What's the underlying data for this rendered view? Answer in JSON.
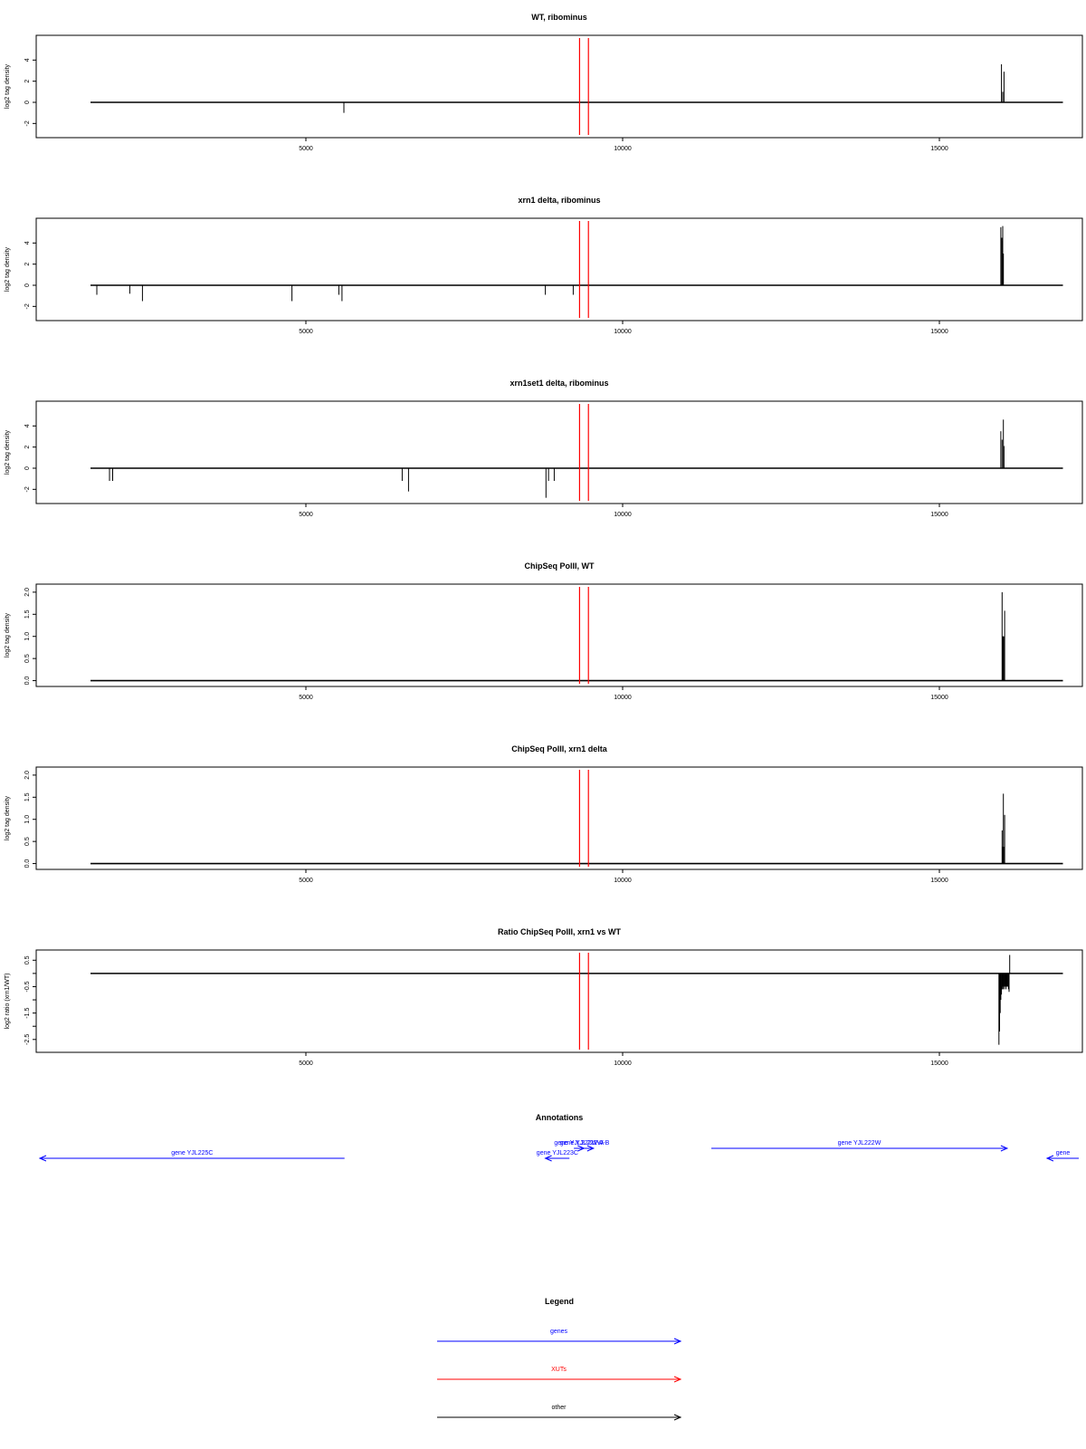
{
  "colors": {
    "genes": "#0000ff",
    "xuts": "#ff0000",
    "other": "#000000",
    "axis": "#000000"
  },
  "chart_data": [
    {
      "type": "line",
      "title": "WT, ribominus",
      "ylabel": "log2 tag density",
      "xlim": [
        800,
        17200
      ],
      "ylim": [
        -3,
        6
      ],
      "xticks": [
        5000,
        10000,
        15000
      ],
      "yticks": [
        -2,
        0,
        2,
        4
      ],
      "ytick_labels": [
        "-2",
        "0",
        "2",
        "4"
      ],
      "baseline": 0,
      "spikes": [
        [
          5600,
          -1.0
        ],
        [
          15980,
          3.6
        ],
        [
          16020,
          2.9
        ],
        [
          16000,
          1.0
        ]
      ],
      "red_markers": [
        9320,
        9460
      ]
    },
    {
      "type": "line",
      "title": "xrn1 delta, ribominus",
      "ylabel": "log2 tag density",
      "xlim": [
        800,
        17200
      ],
      "ylim": [
        -3,
        6
      ],
      "xticks": [
        5000,
        10000,
        15000
      ],
      "yticks": [
        -2,
        0,
        2,
        4
      ],
      "ytick_labels": [
        "-2",
        "0",
        "2",
        "4"
      ],
      "baseline": 0,
      "spikes": [
        [
          1700,
          -0.9
        ],
        [
          2220,
          -0.8
        ],
        [
          2420,
          -1.5
        ],
        [
          4780,
          -1.5
        ],
        [
          5520,
          -0.9
        ],
        [
          5570,
          -1.5
        ],
        [
          8780,
          -0.9
        ],
        [
          9220,
          -0.9
        ],
        [
          15970,
          5.5
        ],
        [
          16000,
          5.6
        ],
        [
          15985,
          4.5
        ],
        [
          16010,
          3.0
        ],
        [
          15995,
          4.2
        ]
      ],
      "red_markers": [
        9320,
        9460
      ]
    },
    {
      "type": "line",
      "title": "xrn1set1 delta, ribominus",
      "ylabel": "log2 tag density",
      "xlim": [
        800,
        17200
      ],
      "ylim": [
        -3,
        6
      ],
      "xticks": [
        5000,
        10000,
        15000
      ],
      "yticks": [
        -2,
        0,
        2,
        4
      ],
      "ytick_labels": [
        "-2",
        "0",
        "2",
        "4"
      ],
      "baseline": 0,
      "spikes": [
        [
          1900,
          -1.2
        ],
        [
          1950,
          -1.2
        ],
        [
          6520,
          -1.2
        ],
        [
          6620,
          -2.2
        ],
        [
          8790,
          -2.8
        ],
        [
          8830,
          -1.2
        ],
        [
          8920,
          -1.2
        ],
        [
          15970,
          3.5
        ],
        [
          16010,
          4.6
        ],
        [
          15990,
          2.7
        ],
        [
          16020,
          2.1
        ]
      ],
      "red_markers": [
        9320,
        9460
      ]
    },
    {
      "type": "line",
      "title": "ChipSeq PolII, WT",
      "ylabel": "log2 tag density",
      "xlim": [
        800,
        17200
      ],
      "ylim": [
        -0.05,
        2.1
      ],
      "xticks": [
        5000,
        10000,
        15000
      ],
      "yticks": [
        0,
        0.5,
        1,
        1.5,
        2
      ],
      "ytick_labels": [
        "0.0",
        "0.5",
        "1.0",
        "1.5",
        "2.0"
      ],
      "baseline": 0,
      "spikes": [
        [
          15990,
          2.0
        ],
        [
          16030,
          1.58
        ],
        [
          16000,
          1.0
        ],
        [
          16010,
          1.0
        ],
        [
          16015,
          1.0
        ]
      ],
      "red_markers": [
        9320,
        9460
      ]
    },
    {
      "type": "line",
      "title": "ChipSeq PolII, xrn1 delta",
      "ylabel": "log2 tag density",
      "xlim": [
        800,
        17200
      ],
      "ylim": [
        -0.05,
        2.1
      ],
      "xticks": [
        5000,
        10000,
        15000
      ],
      "yticks": [
        0,
        0.5,
        1,
        1.5,
        2
      ],
      "ytick_labels": [
        "0.0",
        "0.5",
        "1.0",
        "1.5",
        "2.0"
      ],
      "baseline": 0,
      "spikes": [
        [
          15990,
          0.75
        ],
        [
          16010,
          1.58
        ],
        [
          16030,
          1.1
        ],
        [
          16000,
          0.38
        ],
        [
          16015,
          0.38
        ]
      ],
      "red_markers": [
        9320,
        9460
      ]
    },
    {
      "type": "line",
      "title": "Ratio ChipSeq PolII, xrn1 vs WT",
      "ylabel": "log2 ratio (xrn1/WT)",
      "xlim": [
        800,
        17200
      ],
      "ylim": [
        -2.85,
        0.75
      ],
      "xticks": [
        5000,
        10000,
        15000
      ],
      "yticks": [
        -2.5,
        -2,
        -1.5,
        -1,
        -0.5,
        0,
        0.5
      ],
      "ytick_labels": [
        "-2.5",
        "-1.5",
        "-0.5",
        "0.5"
      ],
      "ytick_label_values": [
        -2.5,
        -1.5,
        -0.5,
        0.5
      ],
      "baseline": 0,
      "spikes": [
        [
          15940,
          -2.7
        ],
        [
          15950,
          -2.2
        ],
        [
          15960,
          -1.5
        ],
        [
          15970,
          -1.0
        ],
        [
          15980,
          -0.8
        ],
        [
          15990,
          -0.6
        ],
        [
          16000,
          -0.6
        ],
        [
          16010,
          -0.5
        ],
        [
          16020,
          -0.6
        ],
        [
          16030,
          -0.5
        ],
        [
          16040,
          -0.5
        ],
        [
          16050,
          -0.6
        ],
        [
          16060,
          -0.5
        ],
        [
          16070,
          -0.5
        ],
        [
          16080,
          -0.5
        ],
        [
          16090,
          -0.6
        ],
        [
          16100,
          -0.7
        ],
        [
          16110,
          0.7
        ]
      ],
      "red_markers": [
        9320,
        9460
      ]
    }
  ],
  "annotations": {
    "title": "Annotations",
    "features": [
      {
        "label": "gene YJL225C",
        "start": 800,
        "end": 5610,
        "strand": "-",
        "row": 2,
        "type": "genes"
      },
      {
        "label": "gene YJL223C",
        "start": 8780,
        "end": 9160,
        "strand": "-",
        "row": 2,
        "type": "genes"
      },
      {
        "label": "gene YJL222W-A",
        "start": 9230,
        "end": 9390,
        "strand": "+",
        "row": 1,
        "type": "genes"
      },
      {
        "label": "gene YJL222W-B",
        "start": 9260,
        "end": 9540,
        "strand": "+",
        "row": 1,
        "type": "genes"
      },
      {
        "label": "gene YJL222W",
        "start": 11400,
        "end": 16070,
        "strand": "+",
        "row": 1,
        "type": "genes"
      },
      {
        "label": "gene",
        "start": 16700,
        "end": 17200,
        "strand": "-",
        "row": 2,
        "type": "genes"
      }
    ]
  },
  "legend": {
    "title": "Legend",
    "items": [
      {
        "label": "genes",
        "type": "genes"
      },
      {
        "label": "XUTs",
        "type": "xuts"
      },
      {
        "label": "other",
        "type": "other"
      }
    ]
  }
}
